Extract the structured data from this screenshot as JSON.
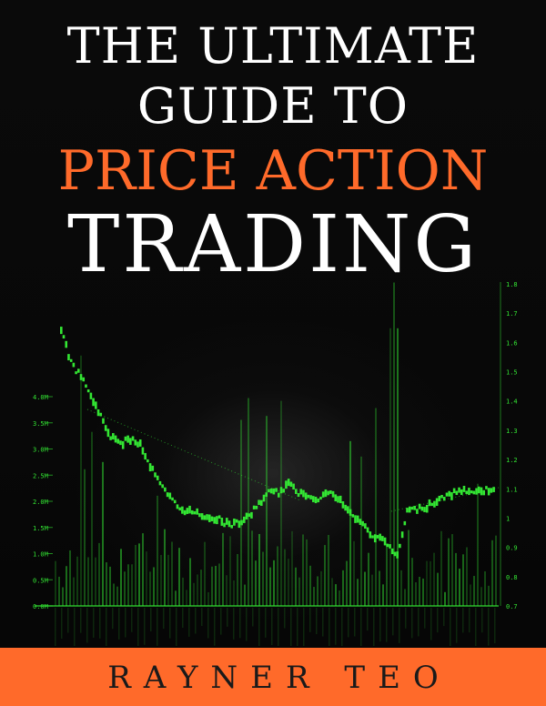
{
  "book": {
    "title_line1": "THE ULTIMATE",
    "title_line2": "GUIDE TO",
    "title_line3": "PRICE ACTION",
    "title_line4": "TRADING",
    "author": "RAYNER TEO"
  },
  "colors": {
    "accent": "#ff6a2a",
    "title_white": "#ffffff",
    "background": "#0a0a0a",
    "chart_green": "#33e633",
    "author_text": "#1a1a1a"
  },
  "chart_data": {
    "type": "line",
    "y_left_ticks": [
      "4.0M",
      "3.5M",
      "3.0M",
      "2.5M",
      "2.0M",
      "1.5M",
      "1.0M",
      "0.5M",
      "0.0M"
    ],
    "y_right_ticks": [
      "1.8",
      "1.7",
      "1.6",
      "1.5",
      "1.4",
      "1.3",
      "1.2",
      "1.1",
      "1",
      "0.9",
      "0.8",
      "0.7"
    ],
    "price": [
      1.72,
      1.6,
      1.55,
      1.48,
      1.4,
      1.33,
      1.3,
      1.32,
      1.3,
      1.22,
      1.15,
      1.1,
      1.06,
      1.05,
      1.04,
      1.03,
      1.02,
      1.0,
      1.01,
      1.03,
      1.08,
      1.12,
      1.12,
      1.15,
      1.12,
      1.11,
      1.1,
      1.12,
      1.1,
      1.05,
      1.02,
      0.98,
      0.95,
      0.93,
      0.88,
      1.05,
      1.06,
      1.07,
      1.09,
      1.11,
      1.12,
      1.13,
      1.12,
      1.13,
      1.14
    ],
    "grid": false,
    "legend": "none"
  }
}
